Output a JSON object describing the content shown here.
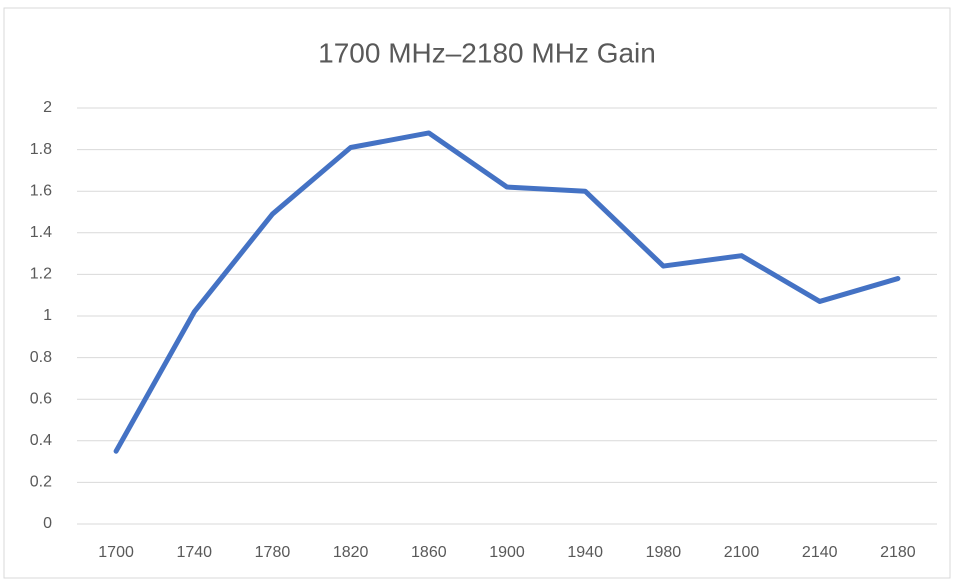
{
  "chart_data": {
    "type": "line",
    "title": "1700 MHz–2180 MHz Gain",
    "categories": [
      "1700",
      "1740",
      "1780",
      "1820",
      "1860",
      "1900",
      "1940",
      "1980",
      "2100",
      "2140",
      "2180"
    ],
    "values": [
      0.35,
      1.02,
      1.49,
      1.81,
      1.88,
      1.62,
      1.6,
      1.24,
      1.29,
      1.07,
      1.18
    ],
    "color": "#4472c4",
    "ylim": [
      0,
      2
    ],
    "yticks": [
      0,
      0.2,
      0.4,
      0.6,
      0.8,
      1,
      1.2,
      1.4,
      1.6,
      1.8,
      2
    ],
    "grid": true
  }
}
